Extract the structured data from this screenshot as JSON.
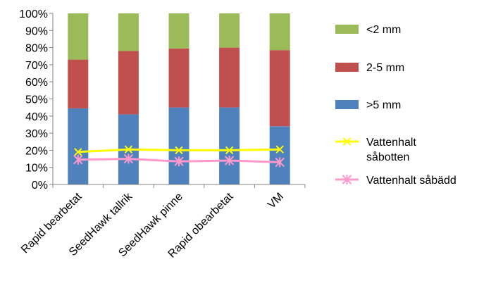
{
  "chart_data": {
    "type": "bar",
    "stacked": true,
    "categories": [
      "Rapid bearbetat",
      "SeedHawk tallrik",
      "SeedHawk pinne",
      "Rapid obearbetat",
      "VM"
    ],
    "series": [
      {
        "name": ">5 mm",
        "kind": "bar",
        "color": "#4f81bd",
        "values": [
          44.5,
          41,
          45,
          45,
          34
        ]
      },
      {
        "name": "2-5 mm",
        "kind": "bar",
        "color": "#c0504d",
        "values": [
          28.5,
          37,
          34.5,
          35,
          44.5
        ]
      },
      {
        "name": "<2 mm",
        "kind": "bar",
        "color": "#9bbb59",
        "values": [
          27,
          22,
          20.5,
          20,
          21.5
        ]
      },
      {
        "name_lines": [
          "Vattenhalt",
          "såbotten"
        ],
        "kind": "line",
        "color": "#ffff00",
        "marker": "x",
        "values": [
          19,
          20.5,
          20,
          20,
          20.5
        ]
      },
      {
        "name": "Vattenhalt såbädd",
        "kind": "line",
        "color": "#ff99cc",
        "marker": "star",
        "values": [
          14.5,
          15,
          13.5,
          14,
          13
        ]
      }
    ],
    "yaxis": {
      "min": 0,
      "max": 100,
      "step": 10,
      "tick_labels": [
        "0%",
        "10%",
        "20%",
        "30%",
        "40%",
        "50%",
        "60%",
        "70%",
        "80%",
        "90%",
        "100%"
      ]
    },
    "grid": false,
    "legend_position": "right",
    "legend_order": [
      2,
      1,
      0,
      3,
      4
    ]
  }
}
